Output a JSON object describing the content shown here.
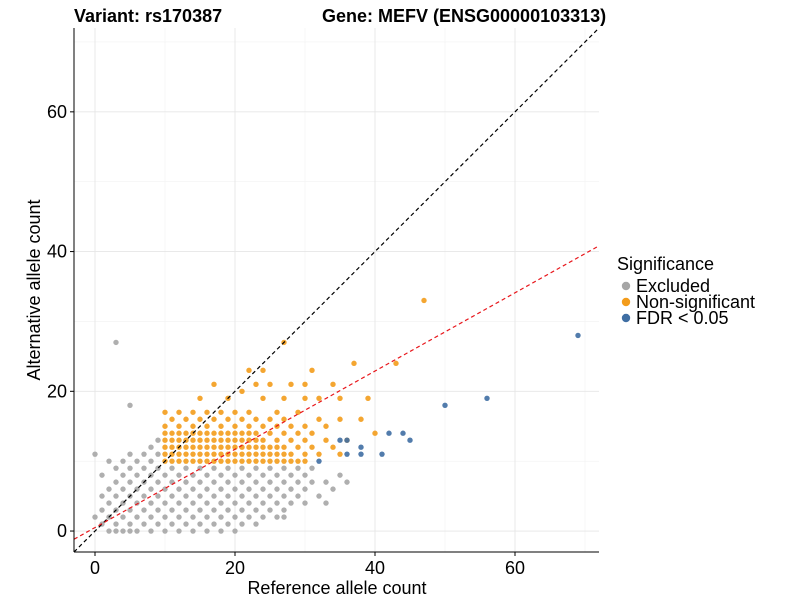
{
  "chart_data": {
    "type": "scatter",
    "title_left": "Variant: rs170387",
    "title_right": "Gene: MEFV (ENSG00000103313)",
    "xlabel": "Reference allele count",
    "ylabel": "Alternative allele count",
    "xlim": [
      -3,
      72
    ],
    "ylim": [
      -3,
      72
    ],
    "xticks": [
      0,
      20,
      40,
      60
    ],
    "yticks": [
      0,
      20,
      40,
      60
    ],
    "grid": true,
    "legend": {
      "title": "Significance",
      "position": "right",
      "entries": [
        {
          "label": "Excluded",
          "color": "#a6a6a6"
        },
        {
          "label": "Non-significant",
          "color": "#f39c1b"
        },
        {
          "label": "FDR < 0.05",
          "color": "#3f6ea3"
        }
      ]
    },
    "reference_lines": [
      {
        "name": "identity",
        "slope": 1.0,
        "intercept": 0,
        "color": "#000000",
        "style": "dashed"
      },
      {
        "name": "fit",
        "slope": 0.56,
        "intercept": 0.5,
        "color": "#e8161b",
        "style": "dashed"
      }
    ],
    "series": [
      {
        "name": "Excluded",
        "color": "#a6a6a6",
        "points": [
          [
            0,
            2
          ],
          [
            0,
            11
          ],
          [
            1,
            1
          ],
          [
            1,
            3
          ],
          [
            1,
            5
          ],
          [
            1,
            8
          ],
          [
            2,
            0
          ],
          [
            2,
            2
          ],
          [
            2,
            4
          ],
          [
            2,
            6
          ],
          [
            2,
            10
          ],
          [
            3,
            0
          ],
          [
            3,
            1
          ],
          [
            3,
            3
          ],
          [
            3,
            5
          ],
          [
            3,
            7
          ],
          [
            3,
            9
          ],
          [
            3,
            27
          ],
          [
            4,
            0
          ],
          [
            4,
            2
          ],
          [
            4,
            4
          ],
          [
            4,
            6
          ],
          [
            4,
            8
          ],
          [
            4,
            10
          ],
          [
            5,
            0
          ],
          [
            5,
            1
          ],
          [
            5,
            3
          ],
          [
            5,
            5
          ],
          [
            5,
            7
          ],
          [
            5,
            9
          ],
          [
            5,
            11
          ],
          [
            5,
            18
          ],
          [
            6,
            0
          ],
          [
            6,
            2
          ],
          [
            6,
            4
          ],
          [
            6,
            6
          ],
          [
            6,
            8
          ],
          [
            6,
            10
          ],
          [
            7,
            1
          ],
          [
            7,
            3
          ],
          [
            7,
            5
          ],
          [
            7,
            7
          ],
          [
            7,
            9
          ],
          [
            7,
            11
          ],
          [
            8,
            0
          ],
          [
            8,
            2
          ],
          [
            8,
            4
          ],
          [
            8,
            6
          ],
          [
            8,
            8
          ],
          [
            8,
            10
          ],
          [
            8,
            12
          ],
          [
            9,
            1
          ],
          [
            9,
            3
          ],
          [
            9,
            5
          ],
          [
            9,
            7
          ],
          [
            9,
            9
          ],
          [
            9,
            11
          ],
          [
            9,
            13
          ],
          [
            10,
            0
          ],
          [
            10,
            2
          ],
          [
            10,
            4
          ],
          [
            10,
            6
          ],
          [
            10,
            8
          ],
          [
            11,
            1
          ],
          [
            11,
            3
          ],
          [
            11,
            5
          ],
          [
            11,
            7
          ],
          [
            11,
            9
          ],
          [
            12,
            0
          ],
          [
            12,
            2
          ],
          [
            12,
            4
          ],
          [
            12,
            6
          ],
          [
            12,
            8
          ],
          [
            13,
            1
          ],
          [
            13,
            3
          ],
          [
            13,
            5
          ],
          [
            13,
            7
          ],
          [
            13,
            9
          ],
          [
            14,
            0
          ],
          [
            14,
            2
          ],
          [
            14,
            4
          ],
          [
            14,
            6
          ],
          [
            14,
            8
          ],
          [
            15,
            1
          ],
          [
            15,
            3
          ],
          [
            15,
            5
          ],
          [
            15,
            7
          ],
          [
            15,
            9
          ],
          [
            16,
            0
          ],
          [
            16,
            2
          ],
          [
            16,
            4
          ],
          [
            16,
            6
          ],
          [
            16,
            8
          ],
          [
            17,
            1
          ],
          [
            17,
            3
          ],
          [
            17,
            5
          ],
          [
            17,
            7
          ],
          [
            17,
            9
          ],
          [
            18,
            0
          ],
          [
            18,
            2
          ],
          [
            18,
            4
          ],
          [
            18,
            6
          ],
          [
            18,
            8
          ],
          [
            19,
            1
          ],
          [
            19,
            3
          ],
          [
            19,
            5
          ],
          [
            19,
            7
          ],
          [
            19,
            9
          ],
          [
            20,
            0
          ],
          [
            20,
            2
          ],
          [
            20,
            4
          ],
          [
            20,
            6
          ],
          [
            20,
            8
          ],
          [
            21,
            1
          ],
          [
            21,
            3
          ],
          [
            21,
            5
          ],
          [
            21,
            7
          ],
          [
            21,
            9
          ],
          [
            22,
            2
          ],
          [
            22,
            4
          ],
          [
            22,
            6
          ],
          [
            22,
            8
          ],
          [
            23,
            1
          ],
          [
            23,
            3
          ],
          [
            23,
            5
          ],
          [
            23,
            7
          ],
          [
            23,
            9
          ],
          [
            24,
            2
          ],
          [
            24,
            4
          ],
          [
            24,
            6
          ],
          [
            24,
            8
          ],
          [
            25,
            3
          ],
          [
            25,
            5
          ],
          [
            25,
            7
          ],
          [
            25,
            9
          ],
          [
            26,
            2
          ],
          [
            26,
            4
          ],
          [
            26,
            6
          ],
          [
            26,
            8
          ],
          [
            27,
            3
          ],
          [
            27,
            5
          ],
          [
            27,
            7
          ],
          [
            27,
            9
          ],
          [
            27,
            2
          ],
          [
            28,
            4
          ],
          [
            28,
            6
          ],
          [
            28,
            8
          ],
          [
            29,
            5
          ],
          [
            29,
            7
          ],
          [
            29,
            9
          ],
          [
            30,
            4
          ],
          [
            30,
            6
          ],
          [
            30,
            8
          ],
          [
            31,
            7
          ],
          [
            31,
            9
          ],
          [
            32,
            5
          ],
          [
            33,
            4
          ],
          [
            33,
            7
          ],
          [
            34,
            6
          ],
          [
            35,
            8
          ],
          [
            36,
            7
          ]
        ]
      },
      {
        "name": "Non-significant",
        "color": "#f39c1b",
        "points": [
          [
            10,
            10
          ],
          [
            10,
            11
          ],
          [
            10,
            12
          ],
          [
            10,
            13
          ],
          [
            10,
            14
          ],
          [
            10,
            15
          ],
          [
            10,
            17
          ],
          [
            11,
            10
          ],
          [
            11,
            11
          ],
          [
            11,
            12
          ],
          [
            11,
            13
          ],
          [
            11,
            14
          ],
          [
            11,
            16
          ],
          [
            12,
            10
          ],
          [
            12,
            11
          ],
          [
            12,
            12
          ],
          [
            12,
            13
          ],
          [
            12,
            14
          ],
          [
            12,
            15
          ],
          [
            12,
            17
          ],
          [
            13,
            10
          ],
          [
            13,
            11
          ],
          [
            13,
            12
          ],
          [
            13,
            13
          ],
          [
            13,
            14
          ],
          [
            13,
            16
          ],
          [
            14,
            10
          ],
          [
            14,
            11
          ],
          [
            14,
            12
          ],
          [
            14,
            13
          ],
          [
            14,
            14
          ],
          [
            14,
            15
          ],
          [
            14,
            17
          ],
          [
            15,
            10
          ],
          [
            15,
            11
          ],
          [
            15,
            12
          ],
          [
            15,
            13
          ],
          [
            15,
            14
          ],
          [
            15,
            16
          ],
          [
            15,
            19
          ],
          [
            16,
            10
          ],
          [
            16,
            11
          ],
          [
            16,
            12
          ],
          [
            16,
            13
          ],
          [
            16,
            14
          ],
          [
            16,
            15
          ],
          [
            16,
            17
          ],
          [
            17,
            10
          ],
          [
            17,
            11
          ],
          [
            17,
            12
          ],
          [
            17,
            13
          ],
          [
            17,
            14
          ],
          [
            17,
            16
          ],
          [
            17,
            21
          ],
          [
            18,
            10
          ],
          [
            18,
            11
          ],
          [
            18,
            12
          ],
          [
            18,
            13
          ],
          [
            18,
            14
          ],
          [
            18,
            15
          ],
          [
            18,
            17
          ],
          [
            19,
            10
          ],
          [
            19,
            11
          ],
          [
            19,
            12
          ],
          [
            19,
            13
          ],
          [
            19,
            14
          ],
          [
            19,
            16
          ],
          [
            19,
            19
          ],
          [
            20,
            10
          ],
          [
            20,
            11
          ],
          [
            20,
            12
          ],
          [
            20,
            13
          ],
          [
            20,
            14
          ],
          [
            20,
            15
          ],
          [
            20,
            17
          ],
          [
            21,
            10
          ],
          [
            21,
            11
          ],
          [
            21,
            12
          ],
          [
            21,
            13
          ],
          [
            21,
            14
          ],
          [
            21,
            16
          ],
          [
            21,
            20
          ],
          [
            22,
            10
          ],
          [
            22,
            11
          ],
          [
            22,
            12
          ],
          [
            22,
            13
          ],
          [
            22,
            14
          ],
          [
            22,
            15
          ],
          [
            22,
            17
          ],
          [
            22,
            23
          ],
          [
            23,
            10
          ],
          [
            23,
            11
          ],
          [
            23,
            12
          ],
          [
            23,
            13
          ],
          [
            23,
            14
          ],
          [
            23,
            16
          ],
          [
            23,
            21
          ],
          [
            24,
            10
          ],
          [
            24,
            11
          ],
          [
            24,
            12
          ],
          [
            24,
            13
          ],
          [
            24,
            15
          ],
          [
            24,
            19
          ],
          [
            24,
            23
          ],
          [
            25,
            10
          ],
          [
            25,
            11
          ],
          [
            25,
            12
          ],
          [
            25,
            14
          ],
          [
            25,
            16
          ],
          [
            25,
            21
          ],
          [
            26,
            10
          ],
          [
            26,
            11
          ],
          [
            26,
            12
          ],
          [
            26,
            13
          ],
          [
            26,
            15
          ],
          [
            26,
            17
          ],
          [
            27,
            10
          ],
          [
            27,
            11
          ],
          [
            27,
            12
          ],
          [
            27,
            14
          ],
          [
            27,
            16
          ],
          [
            27,
            19
          ],
          [
            27,
            27
          ],
          [
            28,
            10
          ],
          [
            28,
            11
          ],
          [
            28,
            13
          ],
          [
            28,
            15
          ],
          [
            28,
            21
          ],
          [
            29,
            10
          ],
          [
            29,
            12
          ],
          [
            29,
            14
          ],
          [
            29,
            17
          ],
          [
            30,
            10
          ],
          [
            30,
            11
          ],
          [
            30,
            13
          ],
          [
            30,
            15
          ],
          [
            30,
            19
          ],
          [
            30,
            21
          ],
          [
            31,
            12
          ],
          [
            31,
            14
          ],
          [
            31,
            23
          ],
          [
            32,
            11
          ],
          [
            32,
            16
          ],
          [
            32,
            19
          ],
          [
            33,
            13
          ],
          [
            33,
            15
          ],
          [
            34,
            12
          ],
          [
            34,
            21
          ],
          [
            35,
            11
          ],
          [
            35,
            16
          ],
          [
            35,
            19
          ],
          [
            36,
            13
          ],
          [
            37,
            24
          ],
          [
            38,
            16
          ],
          [
            39,
            19
          ],
          [
            40,
            14
          ],
          [
            43,
            24
          ],
          [
            47,
            33
          ]
        ]
      },
      {
        "name": "FDR < 0.05",
        "color": "#3f6ea3",
        "points": [
          [
            32,
            10
          ],
          [
            35,
            13
          ],
          [
            36,
            11
          ],
          [
            36,
            13
          ],
          [
            38,
            11
          ],
          [
            38,
            12
          ],
          [
            41,
            11
          ],
          [
            42,
            14
          ],
          [
            44,
            14
          ],
          [
            45,
            13
          ],
          [
            50,
            18
          ],
          [
            56,
            19
          ],
          [
            69,
            28
          ]
        ]
      }
    ]
  }
}
